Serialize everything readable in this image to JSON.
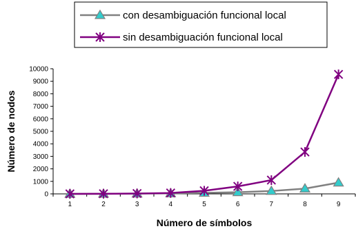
{
  "chart_data": {
    "type": "line",
    "x": [
      1,
      2,
      3,
      4,
      5,
      6,
      7,
      8,
      9
    ],
    "xlabel": "Número de símbolos",
    "ylabel": "Número de nodos",
    "ylim": [
      0,
      10000
    ],
    "yticks": [
      0,
      1000,
      2000,
      3000,
      4000,
      5000,
      6000,
      7000,
      8000,
      9000,
      10000
    ],
    "grid": false,
    "legend_position": "top",
    "series": [
      {
        "name": "con desambiguación funcional local",
        "values": [
          1,
          5,
          20,
          40,
          80,
          130,
          230,
          420,
          900
        ],
        "line_color": "#808080",
        "marker": "triangle",
        "marker_color": "#33cccc"
      },
      {
        "name": "sin desambiguación funcional local",
        "values": [
          1,
          10,
          30,
          70,
          250,
          600,
          1100,
          3350,
          9550
        ],
        "line_color": "#800080",
        "marker": "asterisk",
        "marker_color": "#800080"
      }
    ]
  }
}
